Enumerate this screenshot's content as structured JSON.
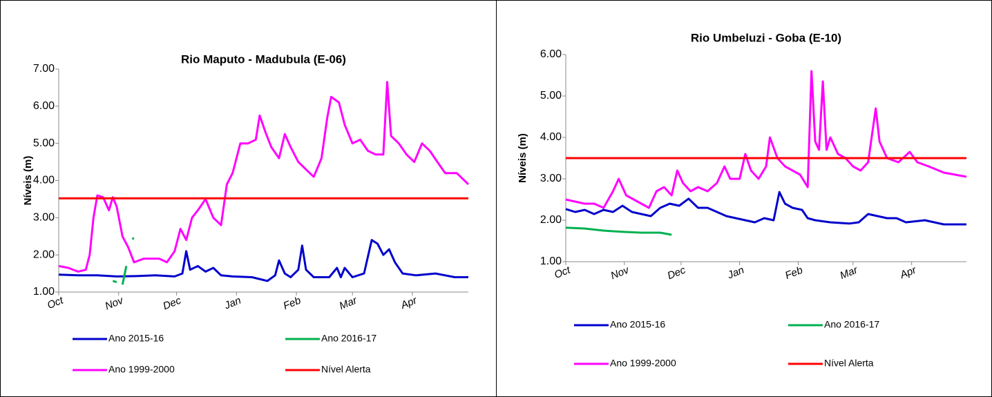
{
  "chart_data": [
    {
      "type": "line",
      "title": "Rio Maputo - Madubula (E-06)",
      "ylabel": "Níveis (m)",
      "grid": false,
      "legend": "bottom",
      "xlim": [
        0,
        212
      ],
      "xticks": [
        {
          "value": 0,
          "label": "Oct"
        },
        {
          "value": 31,
          "label": "Nov"
        },
        {
          "value": 61,
          "label": "Dec"
        },
        {
          "value": 92,
          "label": "Jan"
        },
        {
          "value": 123,
          "label": "Feb"
        },
        {
          "value": 152,
          "label": "Mar"
        },
        {
          "value": 183,
          "label": "Apr"
        }
      ],
      "ylim": [
        1,
        7
      ],
      "yticks": [
        {
          "value": 1,
          "label": "1.00"
        },
        {
          "value": 2,
          "label": "2.00"
        },
        {
          "value": 3,
          "label": "3.00"
        },
        {
          "value": 4,
          "label": "4.00"
        },
        {
          "value": 5,
          "label": "5.00"
        },
        {
          "value": 6,
          "label": "6.00"
        },
        {
          "value": 7,
          "label": "7.00"
        }
      ],
      "series": [
        {
          "name": "Ano 2015-16",
          "color": "#0000cc",
          "x": [
            0,
            10,
            20,
            30,
            40,
            50,
            60,
            64,
            66,
            68,
            72,
            76,
            80,
            84,
            90,
            100,
            108,
            112,
            114,
            117,
            120,
            124,
            126,
            128,
            132,
            140,
            144,
            146,
            148,
            152,
            158,
            162,
            165,
            168,
            171,
            174,
            178,
            185,
            195,
            205,
            212
          ],
          "values": [
            1.47,
            1.45,
            1.45,
            1.42,
            1.43,
            1.45,
            1.42,
            1.5,
            2.1,
            1.6,
            1.7,
            1.55,
            1.65,
            1.45,
            1.42,
            1.4,
            1.3,
            1.45,
            1.85,
            1.5,
            1.4,
            1.6,
            2.25,
            1.6,
            1.4,
            1.4,
            1.65,
            1.4,
            1.65,
            1.4,
            1.5,
            2.4,
            2.3,
            2.0,
            2.15,
            1.8,
            1.5,
            1.45,
            1.5,
            1.4,
            1.4
          ]
        },
        {
          "name": "Ano 2016-17",
          "color": "#00b050",
          "x": [
            28,
            30,
            31,
            33,
            35,
            36,
            38,
            39
          ],
          "values": [
            1.3,
            1.27,
            null,
            1.2,
            1.7,
            null,
            2.45,
            2.43
          ]
        },
        {
          "name": "Ano 1999-2000",
          "color": "#ff00ff",
          "x": [
            0,
            5,
            10,
            14,
            16,
            18,
            20,
            23,
            26,
            28,
            30,
            33,
            36,
            39,
            44,
            52,
            56,
            60,
            63,
            66,
            69,
            72,
            76,
            80,
            84,
            87,
            90,
            94,
            98,
            102,
            104,
            107,
            110,
            114,
            117,
            120,
            124,
            128,
            132,
            136,
            139,
            141,
            145,
            148,
            152,
            156,
            160,
            164,
            168,
            170,
            172,
            176,
            180,
            184,
            188,
            192,
            196,
            200,
            206,
            212
          ],
          "values": [
            1.7,
            1.65,
            1.55,
            1.6,
            2.0,
            3.0,
            3.6,
            3.55,
            3.2,
            3.55,
            3.3,
            2.5,
            2.2,
            1.8,
            1.9,
            1.9,
            1.8,
            2.1,
            2.7,
            2.4,
            3.0,
            3.2,
            3.5,
            3.0,
            2.8,
            3.9,
            4.2,
            5.0,
            5.0,
            5.1,
            5.75,
            5.3,
            4.9,
            4.6,
            5.25,
            4.9,
            4.5,
            4.3,
            4.1,
            4.6,
            5.7,
            6.25,
            6.1,
            5.5,
            5.0,
            5.1,
            4.8,
            4.7,
            4.7,
            6.65,
            5.2,
            5.0,
            4.7,
            4.5,
            5.0,
            4.8,
            4.5,
            4.2,
            4.2,
            3.9
          ]
        },
        {
          "name": "Nível Alerta",
          "color": "#ff0000",
          "x": [
            0,
            212
          ],
          "values": [
            3.52,
            3.52
          ]
        }
      ]
    },
    {
      "type": "line",
      "title": "Rio Umbeluzi - Goba (E-10)",
      "ylabel": "Níveis (m)",
      "grid": false,
      "legend": "bottom",
      "xlim": [
        0,
        212
      ],
      "xticks": [
        {
          "value": 0,
          "label": "Oct"
        },
        {
          "value": 31,
          "label": "Nov"
        },
        {
          "value": 61,
          "label": "Dec"
        },
        {
          "value": 92,
          "label": "Jan"
        },
        {
          "value": 123,
          "label": "Feb"
        },
        {
          "value": 152,
          "label": "Mar"
        },
        {
          "value": 183,
          "label": "Apr"
        }
      ],
      "ylim": [
        1,
        6
      ],
      "yticks": [
        {
          "value": 1,
          "label": "1.00"
        },
        {
          "value": 2,
          "label": "2.00"
        },
        {
          "value": 3,
          "label": "3.00"
        },
        {
          "value": 4,
          "label": "4.00"
        },
        {
          "value": 5,
          "label": "5.00"
        },
        {
          "value": 6,
          "label": "6.00"
        }
      ],
      "series": [
        {
          "name": "Ano 2015-16",
          "color": "#0000cc",
          "x": [
            0,
            5,
            10,
            15,
            20,
            25,
            30,
            35,
            40,
            45,
            50,
            55,
            60,
            65,
            70,
            75,
            80,
            85,
            90,
            95,
            100,
            105,
            110,
            113,
            116,
            120,
            125,
            128,
            132,
            140,
            150,
            155,
            160,
            165,
            170,
            175,
            180,
            190,
            200,
            212
          ],
          "values": [
            2.27,
            2.2,
            2.25,
            2.15,
            2.25,
            2.2,
            2.35,
            2.2,
            2.15,
            2.1,
            2.3,
            2.4,
            2.35,
            2.52,
            2.3,
            2.3,
            2.2,
            2.1,
            2.05,
            2.0,
            1.95,
            2.05,
            2.0,
            2.68,
            2.4,
            2.3,
            2.25,
            2.05,
            2.0,
            1.95,
            1.92,
            1.95,
            2.15,
            2.1,
            2.05,
            2.05,
            1.95,
            2.0,
            1.9,
            1.9
          ]
        },
        {
          "name": "Ano 2016-17",
          "color": "#00b050",
          "x": [
            0,
            10,
            20,
            30,
            40,
            50,
            56
          ],
          "values": [
            1.82,
            1.8,
            1.75,
            1.72,
            1.7,
            1.7,
            1.65
          ]
        },
        {
          "name": "Ano 1999-2000",
          "color": "#ff00ff",
          "x": [
            0,
            5,
            10,
            15,
            20,
            25,
            28,
            32,
            36,
            40,
            44,
            48,
            52,
            56,
            59,
            62,
            66,
            70,
            75,
            80,
            84,
            87,
            92,
            95,
            98,
            102,
            106,
            108,
            112,
            116,
            120,
            124,
            128,
            130,
            132,
            134,
            136,
            138,
            140,
            144,
            148,
            152,
            156,
            160,
            164,
            166,
            170,
            176,
            182,
            186,
            192,
            200,
            206,
            212
          ],
          "values": [
            2.5,
            2.45,
            2.4,
            2.4,
            2.3,
            2.7,
            3.0,
            2.6,
            2.5,
            2.4,
            2.3,
            2.7,
            2.8,
            2.6,
            3.2,
            2.9,
            2.7,
            2.8,
            2.7,
            2.9,
            3.3,
            3.0,
            3.0,
            3.6,
            3.2,
            3.0,
            3.3,
            4.0,
            3.5,
            3.3,
            3.2,
            3.1,
            2.8,
            5.6,
            3.9,
            3.7,
            5.35,
            3.7,
            4.0,
            3.6,
            3.5,
            3.3,
            3.2,
            3.4,
            4.7,
            3.9,
            3.5,
            3.4,
            3.65,
            3.4,
            3.3,
            3.15,
            3.1,
            3.05
          ]
        },
        {
          "name": "Nível Alerta",
          "color": "#ff0000",
          "x": [
            0,
            212
          ],
          "values": [
            3.5,
            3.5
          ]
        }
      ]
    }
  ]
}
